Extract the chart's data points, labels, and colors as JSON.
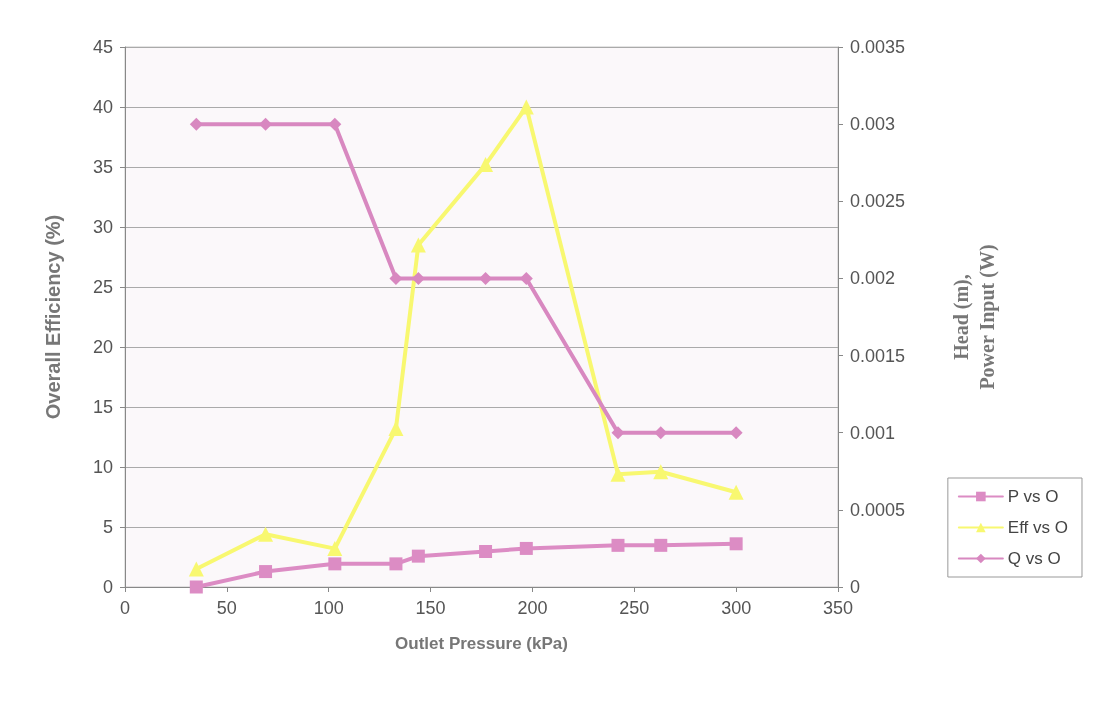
{
  "chart_data": {
    "type": "line",
    "xlabel": "Outlet Pressure (kPa)",
    "ylabel": "Overall Efficiency (%)",
    "y2label": "Head (m),\nPower Input (W)",
    "x": [
      35,
      69,
      103,
      133,
      144,
      177,
      197,
      242,
      263,
      300
    ],
    "series": [
      {
        "name": "P vs O",
        "color": "#dc8cc4",
        "marker": "square",
        "axis": "y2",
        "values": [
          0,
          0.0001,
          0.00015,
          0.00015,
          0.0002,
          0.00023,
          0.00025,
          0.00027,
          0.00027,
          0.00028
        ]
      },
      {
        "name": "Eff vs O",
        "color": "#f8f870",
        "marker": "triangle",
        "values": [
          1.5,
          4.4,
          3.2,
          13.2,
          28.5,
          35.2,
          40,
          9.4,
          9.6,
          7.9
        ]
      },
      {
        "name": "Q vs O",
        "color": "#d888c0",
        "marker": "diamond",
        "axis": "y2",
        "values": [
          0.003,
          0.003,
          0.003,
          0.002,
          0.002,
          0.002,
          0.002,
          0.001,
          0.001,
          0.001
        ]
      }
    ],
    "xlim": [
      0,
      350
    ],
    "xticks": [
      0,
      50,
      100,
      150,
      200,
      250,
      300,
      350
    ],
    "ylim": [
      0,
      45
    ],
    "yticks": [
      0,
      5,
      10,
      15,
      20,
      25,
      30,
      35,
      40,
      45
    ],
    "y2lim": [
      0,
      0.0035
    ],
    "y2ticks": [
      0,
      0.0005,
      0.001,
      0.0015,
      0.002,
      0.0025,
      0.003,
      0.0035
    ],
    "grid": "y",
    "legend": "right",
    "line_style": "solid"
  }
}
